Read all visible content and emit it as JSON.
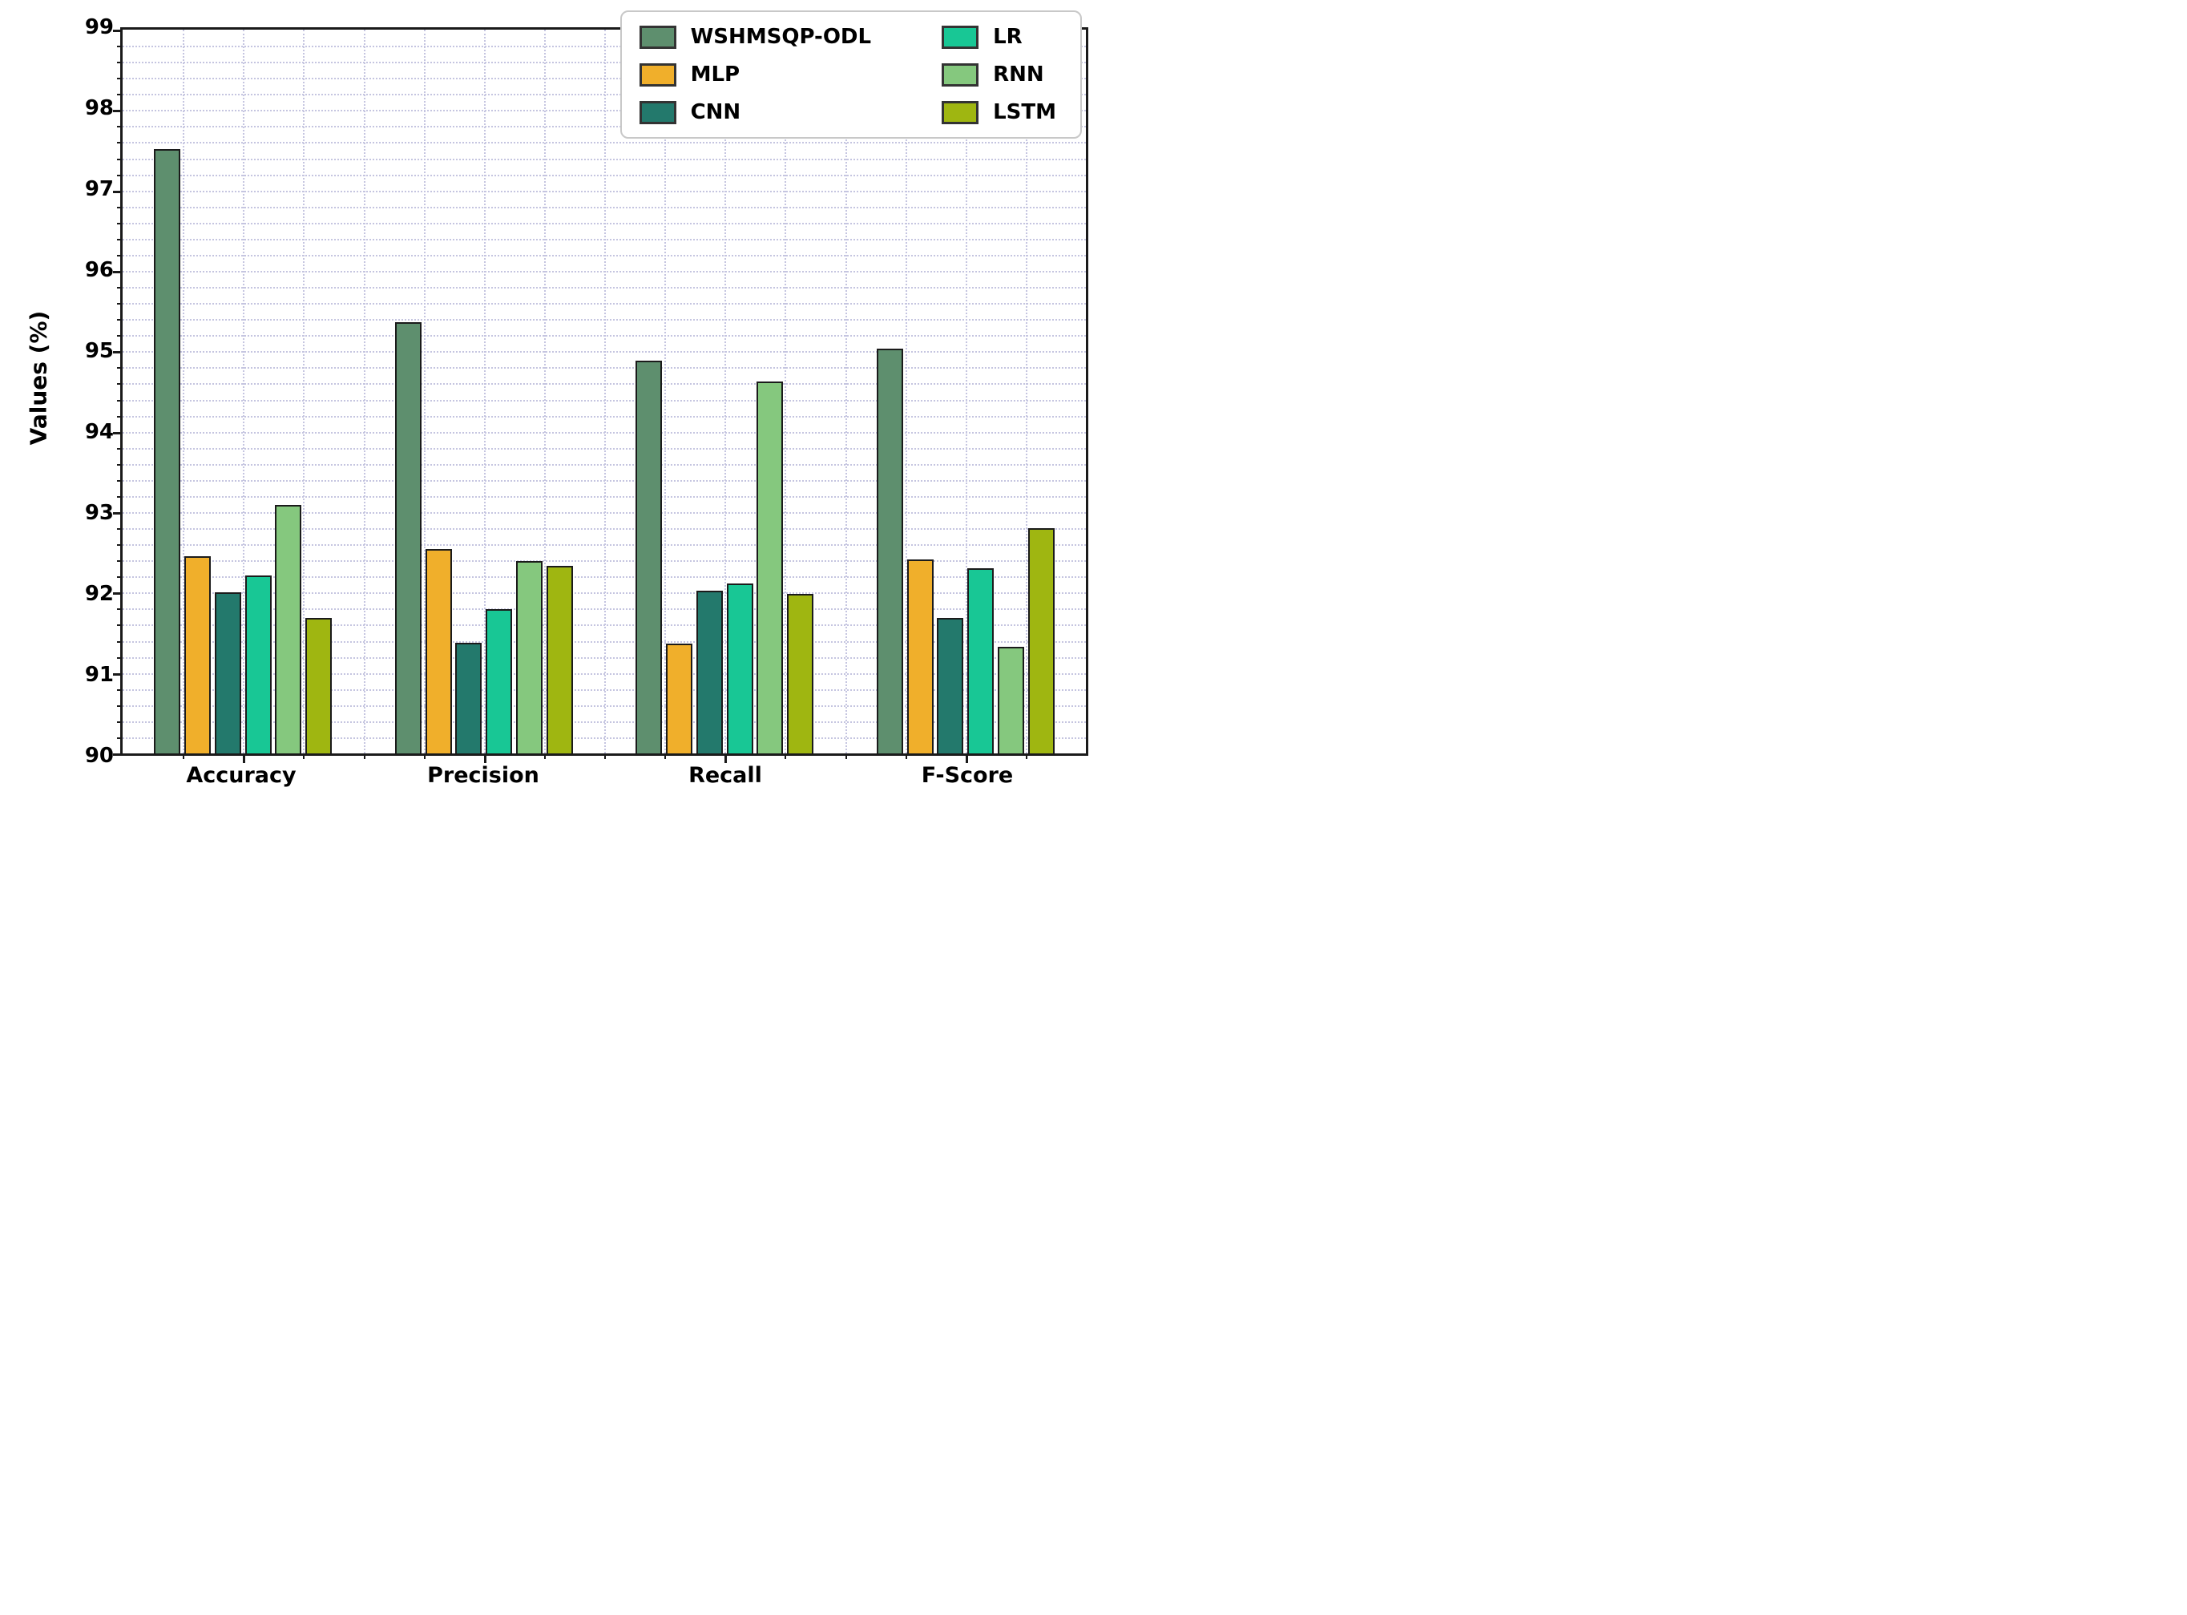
{
  "chart_data": {
    "type": "bar",
    "title": "",
    "ylabel": "Values (%)",
    "ylim": [
      90,
      99
    ],
    "ytick_step": 1,
    "ytick_labels": [
      "90",
      "91",
      "92",
      "93",
      "94",
      "95",
      "96",
      "97",
      "98",
      "99"
    ],
    "ygrid_minor_step": 0.2,
    "xgrid_divisions_per_category": 4,
    "grid": "dotted minor grid on, color light lavender",
    "grid_color": "#c5c5e0",
    "bar_edge_color": "#1b1b1b",
    "categories": [
      "Accuracy",
      "Precision",
      "Recall",
      "F-Score"
    ],
    "series": [
      {
        "name": "WSHMSQP-ODL",
        "color": "#5e8f6e",
        "values": [
          97.52,
          95.36,
          94.88,
          95.03
        ]
      },
      {
        "name": "MLP",
        "color": "#f0af2b",
        "values": [
          92.45,
          92.54,
          91.37,
          92.41
        ]
      },
      {
        "name": "CNN",
        "color": "#23796c",
        "values": [
          92.0,
          91.38,
          92.02,
          91.68
        ]
      },
      {
        "name": "LR",
        "color": "#18c795",
        "values": [
          92.21,
          91.79,
          92.11,
          92.3
        ]
      },
      {
        "name": "RNN",
        "color": "#85c87e",
        "values": [
          93.09,
          92.39,
          94.62,
          91.33
        ]
      },
      {
        "name": "LSTM",
        "color": "#9fb611",
        "values": [
          91.68,
          92.33,
          91.98,
          92.8
        ]
      }
    ],
    "legend": {
      "position": "upper-right",
      "columns": 2,
      "column1": [
        "WSHMSQP-ODL",
        "MLP",
        "CNN"
      ],
      "column2": [
        "LR",
        "RNN",
        "LSTM"
      ]
    }
  }
}
